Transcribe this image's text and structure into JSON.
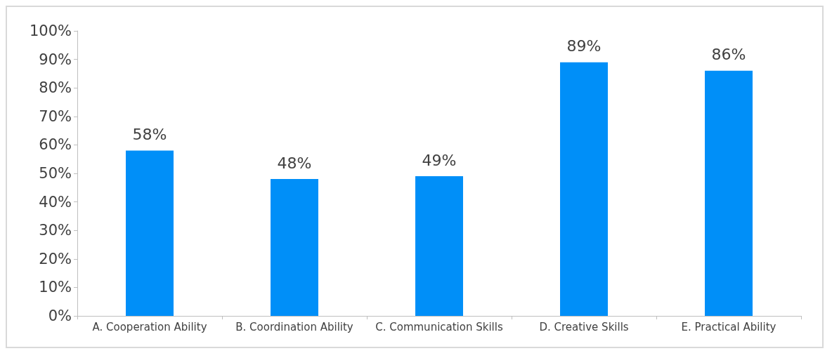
{
  "chart_data": {
    "type": "bar",
    "categories": [
      "A. Cooperation Ability",
      "B. Coordination Ability",
      "C. Communication Skills",
      "D. Creative Skills",
      "E. Practical Ability"
    ],
    "values": [
      58,
      48,
      49,
      89,
      86
    ],
    "value_labels": [
      "58%",
      "48%",
      "49%",
      "89%",
      "86%"
    ],
    "color": "#008ff8",
    "ylim": [
      0,
      100
    ],
    "yticks": [
      {
        "value": 0,
        "label": "0%"
      },
      {
        "value": 10,
        "label": "10%"
      },
      {
        "value": 20,
        "label": "20%"
      },
      {
        "value": 30,
        "label": "30%"
      },
      {
        "value": 40,
        "label": "40%"
      },
      {
        "value": 50,
        "label": "50%"
      },
      {
        "value": 60,
        "label": "60%"
      },
      {
        "value": 70,
        "label": "70%"
      },
      {
        "value": 80,
        "label": "80%"
      },
      {
        "value": 90,
        "label": "90%"
      },
      {
        "value": 100,
        "label": "100%"
      }
    ],
    "grid": false
  }
}
